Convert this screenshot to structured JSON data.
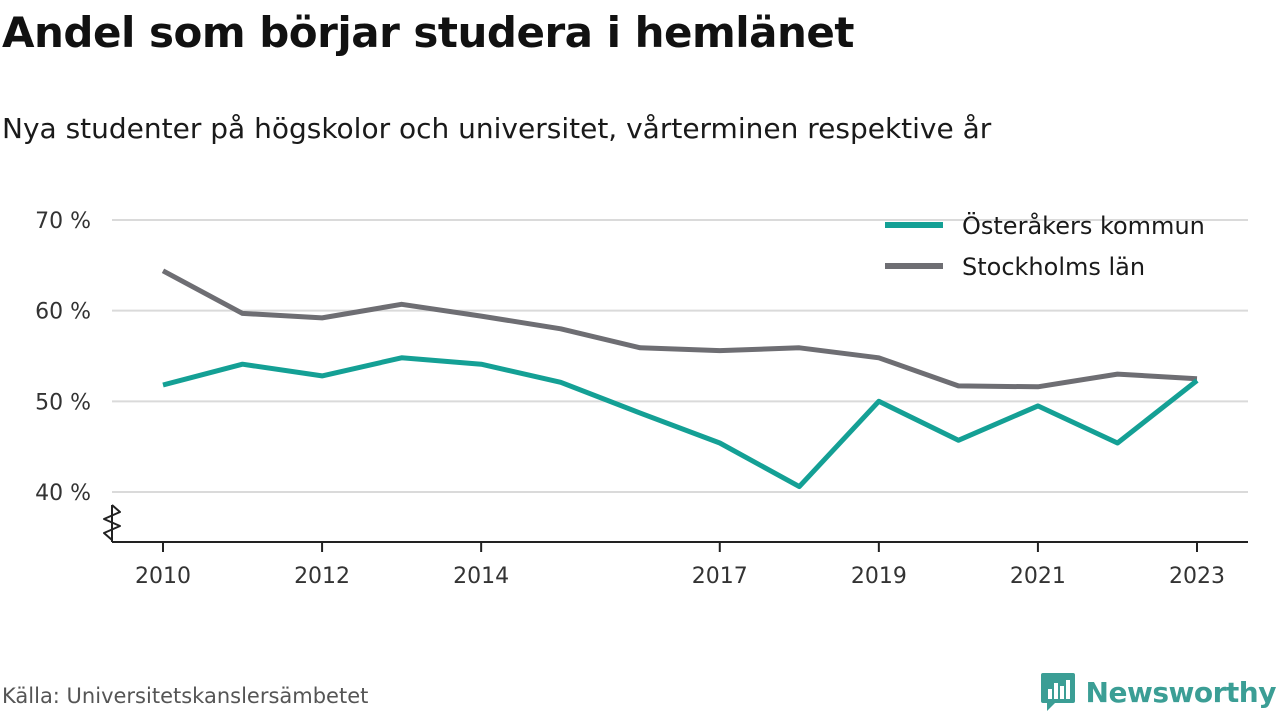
{
  "title": "Andel som börjar studera i hemlänet",
  "subtitle": "Nya studenter på högskolor och universitet, vårterminen respektive år",
  "source": "Källa: Universitetskanslersämbetet",
  "brand": {
    "name": "Newsworthy",
    "icon": "newsworthy-logo-icon",
    "color": "#3b9e95"
  },
  "chart_data": {
    "type": "line",
    "x": [
      2010,
      2011,
      2012,
      2013,
      2014,
      2015,
      2016,
      2017,
      2018,
      2019,
      2020,
      2021,
      2022,
      2023
    ],
    "series": [
      {
        "name": "Österåkers kommun",
        "color": "#14a095",
        "values": [
          51.8,
          54.1,
          52.8,
          54.8,
          54.1,
          52.1,
          48.7,
          45.4,
          40.6,
          50.0,
          45.7,
          49.5,
          45.4,
          52.3
        ]
      },
      {
        "name": "Stockholms län",
        "color": "#6e6e73",
        "values": [
          64.4,
          59.7,
          59.2,
          60.7,
          59.4,
          58.0,
          55.9,
          55.6,
          55.9,
          54.8,
          51.7,
          51.6,
          53.0,
          52.5
        ]
      }
    ],
    "xticks": [
      {
        "value": 2010,
        "label": "2010"
      },
      {
        "value": 2012,
        "label": "2012"
      },
      {
        "value": 2014,
        "label": "2014"
      },
      {
        "value": 2017,
        "label": "2017"
      },
      {
        "value": 2019,
        "label": "2019"
      },
      {
        "value": 2021,
        "label": "2021"
      },
      {
        "value": 2023,
        "label": "2023"
      }
    ],
    "yticks": [
      {
        "value": 40,
        "label": "40 %"
      },
      {
        "value": 50,
        "label": "50 %"
      },
      {
        "value": 60,
        "label": "60 %"
      },
      {
        "value": 70,
        "label": "70 %"
      }
    ],
    "xlabel": "",
    "ylabel": "",
    "xlim": [
      2010,
      2023
    ],
    "ylim": [
      40,
      70
    ],
    "y_axis_break": true,
    "grid": "horizontal",
    "legend": "top-right"
  }
}
